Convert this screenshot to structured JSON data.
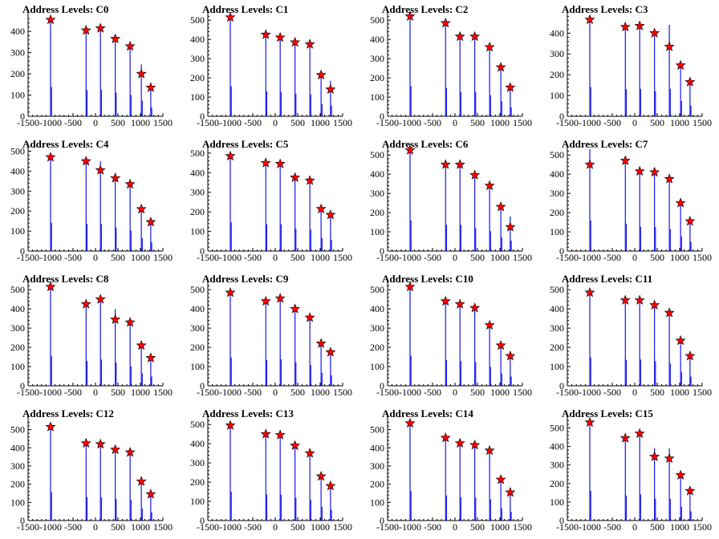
{
  "chart_data": [
    {
      "type": "bar",
      "title": "Address Levels: C0",
      "xlim": [
        -1500,
        1500
      ],
      "ylim": [
        0,
        480
      ],
      "xticks": [
        "-1500",
        "-1000",
        "-500",
        "0",
        "500",
        "1000",
        "1500"
      ],
      "yticks": [
        "0",
        "100",
        "200",
        "300",
        "400"
      ],
      "peaks": [
        {
          "x": -1000,
          "height": 460,
          "marker": 455
        },
        {
          "x": -210,
          "height": 410,
          "marker": 405
        },
        {
          "x": 110,
          "height": 420,
          "marker": 415
        },
        {
          "x": 440,
          "height": 370,
          "marker": 365
        },
        {
          "x": 770,
          "height": 335,
          "marker": 330
        },
        {
          "x": 1020,
          "height": 245,
          "marker": 200
        },
        {
          "x": 1230,
          "height": 140,
          "marker": 135
        }
      ]
    },
    {
      "type": "bar",
      "title": "Address Levels: C1",
      "xlim": [
        -1500,
        1500
      ],
      "ylim": [
        0,
        530
      ],
      "xticks": [
        "-1500",
        "-1000",
        "-500",
        "0",
        "500",
        "1000",
        "1500"
      ],
      "yticks": [
        "0",
        "100",
        "200",
        "300",
        "400",
        "500"
      ],
      "peaks": [
        {
          "x": -1000,
          "height": 520,
          "marker": 515
        },
        {
          "x": -210,
          "height": 430,
          "marker": 425
        },
        {
          "x": 110,
          "height": 420,
          "marker": 410
        },
        {
          "x": 440,
          "height": 390,
          "marker": 385
        },
        {
          "x": 770,
          "height": 380,
          "marker": 375
        },
        {
          "x": 1020,
          "height": 215,
          "marker": 215
        },
        {
          "x": 1230,
          "height": 185,
          "marker": 140
        }
      ]
    },
    {
      "type": "bar",
      "title": "Address Levels: C2",
      "xlim": [
        -1500,
        1500
      ],
      "ylim": [
        0,
        530
      ],
      "xticks": [
        "-1500",
        "-1000",
        "-500",
        "0",
        "500",
        "1000",
        "1500"
      ],
      "yticks": [
        "0",
        "100",
        "200",
        "300",
        "400",
        "500"
      ],
      "peaks": [
        {
          "x": -1000,
          "height": 525,
          "marker": 520
        },
        {
          "x": -210,
          "height": 490,
          "marker": 485
        },
        {
          "x": 110,
          "height": 420,
          "marker": 415
        },
        {
          "x": 440,
          "height": 420,
          "marker": 415
        },
        {
          "x": 770,
          "height": 365,
          "marker": 360
        },
        {
          "x": 1020,
          "height": 260,
          "marker": 255
        },
        {
          "x": 1230,
          "height": 155,
          "marker": 150
        }
      ]
    },
    {
      "type": "bar",
      "title": "Address Levels: C3",
      "xlim": [
        -1500,
        1500
      ],
      "ylim": [
        0,
        490
      ],
      "xticks": [
        "-1500",
        "-1000",
        "-500",
        "0",
        "500",
        "1000",
        "1500"
      ],
      "yticks": [
        "0",
        "100",
        "200",
        "300",
        "400"
      ],
      "peaks": [
        {
          "x": -1000,
          "height": 470,
          "marker": 465
        },
        {
          "x": -210,
          "height": 435,
          "marker": 430
        },
        {
          "x": 110,
          "height": 440,
          "marker": 435
        },
        {
          "x": 440,
          "height": 400,
          "marker": 400
        },
        {
          "x": 770,
          "height": 440,
          "marker": 335
        },
        {
          "x": 1020,
          "height": 245,
          "marker": 245
        },
        {
          "x": 1230,
          "height": 170,
          "marker": 165
        }
      ]
    },
    {
      "type": "bar",
      "title": "Address Levels: C4",
      "xlim": [
        -1500,
        1500
      ],
      "ylim": [
        0,
        510
      ],
      "xticks": [
        "-1500",
        "-1000",
        "-500",
        "0",
        "500",
        "1000",
        "1500"
      ],
      "yticks": [
        "0",
        "100",
        "200",
        "300",
        "400",
        "500"
      ],
      "peaks": [
        {
          "x": -1000,
          "height": 475,
          "marker": 470
        },
        {
          "x": -210,
          "height": 455,
          "marker": 450
        },
        {
          "x": 110,
          "height": 450,
          "marker": 405
        },
        {
          "x": 440,
          "height": 390,
          "marker": 365
        },
        {
          "x": 770,
          "height": 340,
          "marker": 335
        },
        {
          "x": 1020,
          "height": 215,
          "marker": 210
        },
        {
          "x": 1230,
          "height": 150,
          "marker": 145
        }
      ]
    },
    {
      "type": "bar",
      "title": "Address Levels: C5",
      "xlim": [
        -1500,
        1500
      ],
      "ylim": [
        0,
        520
      ],
      "xticks": [
        "-1500",
        "-1000",
        "-500",
        "0",
        "500",
        "1000",
        "1500"
      ],
      "yticks": [
        "0",
        "100",
        "200",
        "300",
        "400",
        "500"
      ],
      "peaks": [
        {
          "x": -1000,
          "height": 490,
          "marker": 485
        },
        {
          "x": -210,
          "height": 455,
          "marker": 450
        },
        {
          "x": 110,
          "height": 455,
          "marker": 445
        },
        {
          "x": 440,
          "height": 380,
          "marker": 375
        },
        {
          "x": 770,
          "height": 365,
          "marker": 360
        },
        {
          "x": 1020,
          "height": 220,
          "marker": 215
        },
        {
          "x": 1230,
          "height": 190,
          "marker": 185
        }
      ]
    },
    {
      "type": "bar",
      "title": "Address Levels: C6",
      "xlim": [
        -1500,
        1500
      ],
      "ylim": [
        0,
        530
      ],
      "xticks": [
        "-1500",
        "-1000",
        "-500",
        "0",
        "500",
        "1000",
        "1500"
      ],
      "yticks": [
        "0",
        "100",
        "200",
        "300",
        "400",
        "500"
      ],
      "peaks": [
        {
          "x": -1000,
          "height": 530,
          "marker": 525
        },
        {
          "x": -210,
          "height": 455,
          "marker": 450
        },
        {
          "x": 110,
          "height": 455,
          "marker": 450
        },
        {
          "x": 440,
          "height": 400,
          "marker": 395
        },
        {
          "x": 770,
          "height": 345,
          "marker": 340
        },
        {
          "x": 1020,
          "height": 235,
          "marker": 230
        },
        {
          "x": 1230,
          "height": 180,
          "marker": 125
        }
      ]
    },
    {
      "type": "bar",
      "title": "Address Levels: C7",
      "xlim": [
        -1500,
        1500
      ],
      "ylim": [
        0,
        530
      ],
      "xticks": [
        "-1500",
        "-1000",
        "-500",
        "0",
        "500",
        "1000",
        "1500"
      ],
      "yticks": [
        "0",
        "100",
        "200",
        "300",
        "400",
        "500"
      ],
      "peaks": [
        {
          "x": -1000,
          "height": 530,
          "marker": 450
        },
        {
          "x": -210,
          "height": 475,
          "marker": 470
        },
        {
          "x": 110,
          "height": 420,
          "marker": 415
        },
        {
          "x": 440,
          "height": 415,
          "marker": 410
        },
        {
          "x": 770,
          "height": 380,
          "marker": 375
        },
        {
          "x": 1020,
          "height": 255,
          "marker": 250
        },
        {
          "x": 1230,
          "height": 160,
          "marker": 155
        }
      ]
    },
    {
      "type": "bar",
      "title": "Address Levels: C8",
      "xlim": [
        -1500,
        1500
      ],
      "ylim": [
        0,
        530
      ],
      "xticks": [
        "-1500",
        "-1000",
        "-500",
        "0",
        "500",
        "1000",
        "1500"
      ],
      "yticks": [
        "0",
        "100",
        "200",
        "300",
        "400",
        "500"
      ],
      "peaks": [
        {
          "x": -1000,
          "height": 520,
          "marker": 515
        },
        {
          "x": -210,
          "height": 430,
          "marker": 425
        },
        {
          "x": 110,
          "height": 455,
          "marker": 450
        },
        {
          "x": 440,
          "height": 400,
          "marker": 345
        },
        {
          "x": 770,
          "height": 335,
          "marker": 330
        },
        {
          "x": 1020,
          "height": 215,
          "marker": 210
        },
        {
          "x": 1230,
          "height": 160,
          "marker": 145
        }
      ]
    },
    {
      "type": "bar",
      "title": "Address Levels: C9",
      "xlim": [
        -1500,
        1500
      ],
      "ylim": [
        0,
        530
      ],
      "xticks": [
        "-1500",
        "-1000",
        "-500",
        "0",
        "500",
        "1000",
        "1500"
      ],
      "yticks": [
        "0",
        "100",
        "200",
        "300",
        "400",
        "500"
      ],
      "peaks": [
        {
          "x": -1000,
          "height": 490,
          "marker": 485
        },
        {
          "x": -210,
          "height": 445,
          "marker": 440
        },
        {
          "x": 110,
          "height": 460,
          "marker": 455
        },
        {
          "x": 440,
          "height": 410,
          "marker": 400
        },
        {
          "x": 770,
          "height": 360,
          "marker": 355
        },
        {
          "x": 1020,
          "height": 225,
          "marker": 220
        },
        {
          "x": 1230,
          "height": 180,
          "marker": 175
        }
      ]
    },
    {
      "type": "bar",
      "title": "Address Levels: C10",
      "xlim": [
        -1500,
        1500
      ],
      "ylim": [
        0,
        530
      ],
      "xticks": [
        "-1500",
        "-1000",
        "-500",
        "0",
        "500",
        "1000",
        "1500"
      ],
      "yticks": [
        "0",
        "100",
        "200",
        "300",
        "400",
        "500"
      ],
      "peaks": [
        {
          "x": -1000,
          "height": 520,
          "marker": 515
        },
        {
          "x": -210,
          "height": 445,
          "marker": 440
        },
        {
          "x": 110,
          "height": 430,
          "marker": 425
        },
        {
          "x": 440,
          "height": 410,
          "marker": 405
        },
        {
          "x": 770,
          "height": 330,
          "marker": 315
        },
        {
          "x": 1020,
          "height": 215,
          "marker": 210
        },
        {
          "x": 1230,
          "height": 160,
          "marker": 155
        }
      ]
    },
    {
      "type": "bar",
      "title": "Address Levels: C11",
      "xlim": [
        -1500,
        1500
      ],
      "ylim": [
        0,
        530
      ],
      "xticks": [
        "-1500",
        "-1000",
        "-500",
        "0",
        "500",
        "1000",
        "1500"
      ],
      "yticks": [
        "0",
        "100",
        "200",
        "300",
        "400",
        "500"
      ],
      "peaks": [
        {
          "x": -1000,
          "height": 490,
          "marker": 485
        },
        {
          "x": -210,
          "height": 450,
          "marker": 445
        },
        {
          "x": 110,
          "height": 455,
          "marker": 445
        },
        {
          "x": 440,
          "height": 425,
          "marker": 420
        },
        {
          "x": 770,
          "height": 385,
          "marker": 380
        },
        {
          "x": 1020,
          "height": 240,
          "marker": 235
        },
        {
          "x": 1230,
          "height": 160,
          "marker": 155
        }
      ]
    },
    {
      "type": "bar",
      "title": "Address Levels: C12",
      "xlim": [
        -1500,
        1500
      ],
      "ylim": [
        0,
        560
      ],
      "xticks": [
        "-1500",
        "-1000",
        "-500",
        "0",
        "500",
        "1000",
        "1500"
      ],
      "yticks": [
        "0",
        "100",
        "200",
        "300",
        "400",
        "500"
      ],
      "peaks": [
        {
          "x": -1000,
          "height": 520,
          "marker": 515
        },
        {
          "x": -210,
          "height": 430,
          "marker": 425
        },
        {
          "x": 110,
          "height": 425,
          "marker": 420
        },
        {
          "x": 440,
          "height": 395,
          "marker": 390
        },
        {
          "x": 770,
          "height": 380,
          "marker": 375
        },
        {
          "x": 1020,
          "height": 220,
          "marker": 215
        },
        {
          "x": 1230,
          "height": 150,
          "marker": 145
        }
      ]
    },
    {
      "type": "bar",
      "title": "Address Levels: C13",
      "xlim": [
        -1500,
        1500
      ],
      "ylim": [
        0,
        530
      ],
      "xticks": [
        "-1500",
        "-1000",
        "-500",
        "0",
        "500",
        "1000",
        "1500"
      ],
      "yticks": [
        "0",
        "100",
        "200",
        "300",
        "400",
        "500"
      ],
      "peaks": [
        {
          "x": -1000,
          "height": 500,
          "marker": 495
        },
        {
          "x": -210,
          "height": 455,
          "marker": 450
        },
        {
          "x": 110,
          "height": 450,
          "marker": 445
        },
        {
          "x": 440,
          "height": 395,
          "marker": 390
        },
        {
          "x": 770,
          "height": 355,
          "marker": 350
        },
        {
          "x": 1020,
          "height": 235,
          "marker": 230
        },
        {
          "x": 1230,
          "height": 185,
          "marker": 180
        }
      ]
    },
    {
      "type": "bar",
      "title": "Address Levels: C14",
      "xlim": [
        -1500,
        1500
      ],
      "ylim": [
        0,
        560
      ],
      "xticks": [
        "-1500",
        "-1000",
        "-500",
        "0",
        "500",
        "1000",
        "1500"
      ],
      "yticks": [
        "0",
        "100",
        "200",
        "300",
        "400",
        "500"
      ],
      "peaks": [
        {
          "x": -1000,
          "height": 540,
          "marker": 535
        },
        {
          "x": -210,
          "height": 460,
          "marker": 455
        },
        {
          "x": 110,
          "height": 430,
          "marker": 425
        },
        {
          "x": 440,
          "height": 420,
          "marker": 415
        },
        {
          "x": 770,
          "height": 390,
          "marker": 385
        },
        {
          "x": 1020,
          "height": 225,
          "marker": 225
        },
        {
          "x": 1230,
          "height": 160,
          "marker": 155
        }
      ]
    },
    {
      "type": "bar",
      "title": "Address Levels: C15",
      "xlim": [
        -1500,
        1500
      ],
      "ylim": [
        0,
        550
      ],
      "xticks": [
        "-1500",
        "-1000",
        "-500",
        "0",
        "500",
        "1000",
        "1500"
      ],
      "yticks": [
        "0",
        "100",
        "200",
        "300",
        "400",
        "500"
      ],
      "peaks": [
        {
          "x": -1000,
          "height": 535,
          "marker": 530
        },
        {
          "x": -210,
          "height": 450,
          "marker": 445
        },
        {
          "x": 110,
          "height": 470,
          "marker": 470
        },
        {
          "x": 440,
          "height": 390,
          "marker": 345
        },
        {
          "x": 770,
          "height": 390,
          "marker": 335
        },
        {
          "x": 1020,
          "height": 250,
          "marker": 245
        },
        {
          "x": 1230,
          "height": 165,
          "marker": 160
        }
      ]
    }
  ],
  "colors": {
    "bar": "#0000ee",
    "marker": "#ff0000",
    "marker_edge": "#000000",
    "axis": "#000000"
  }
}
